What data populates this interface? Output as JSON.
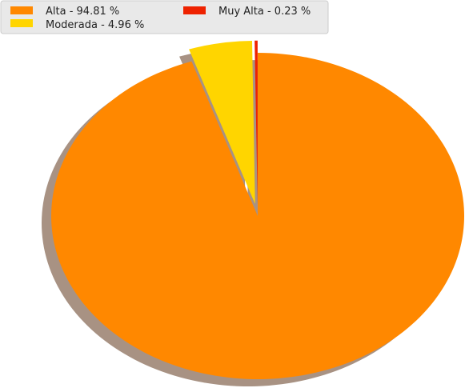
{
  "chart_data": {
    "type": "pie",
    "title": "",
    "slices": [
      {
        "label": "Alta",
        "value": 94.81,
        "color": "#ff8800",
        "legend": "Alta - 94.81 %",
        "exploded": false
      },
      {
        "label": "Moderada",
        "value": 4.96,
        "color": "#ffd500",
        "legend": "Moderada - 4.96 %",
        "exploded": true
      },
      {
        "label": "Muy Alta",
        "value": 0.23,
        "color": "#ee2200",
        "legend": "Muy Alta - 0.23 %",
        "exploded": true
      }
    ],
    "start_angle_deg": 90,
    "direction": "clockwise",
    "shadow": true,
    "shadow_color": "#a89283",
    "legend": {
      "placement": "top-left",
      "columns": 2
    }
  }
}
